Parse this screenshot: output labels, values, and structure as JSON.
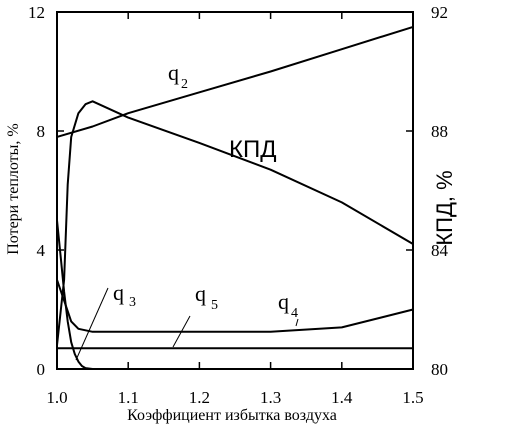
{
  "chart_data": {
    "type": "line",
    "title": "",
    "xlabel": "Коэффициент избытка воздуха",
    "ylabel": "Потери теплоты, %",
    "y2label": "КПД, %",
    "xlim": [
      1.0,
      1.5
    ],
    "ylim": [
      0,
      12
    ],
    "y2lim": [
      80,
      92
    ],
    "x_ticks": [
      "1.0",
      "1.1",
      "1.2",
      "1.3",
      "1.4",
      "1.5"
    ],
    "y_ticks": [
      "0",
      "4",
      "8",
      "12"
    ],
    "y2_ticks": [
      "80",
      "84",
      "88",
      "92"
    ],
    "grid": false,
    "series": [
      {
        "name": "q2",
        "axis": "left",
        "x": [
          1.0,
          1.05,
          1.1,
          1.2,
          1.3,
          1.4,
          1.5
        ],
        "y": [
          7.8,
          8.15,
          8.6,
          9.3,
          10.0,
          10.75,
          11.5
        ]
      },
      {
        "name": "КПД",
        "axis": "right",
        "x": [
          1.0,
          1.01,
          1.015,
          1.02,
          1.03,
          1.04,
          1.05,
          1.1,
          1.2,
          1.3,
          1.4,
          1.5
        ],
        "y": [
          80.8,
          83.0,
          86.2,
          87.8,
          88.6,
          88.9,
          89.0,
          88.45,
          87.6,
          86.7,
          85.6,
          84.2
        ]
      },
      {
        "name": "q3",
        "axis": "left",
        "x": [
          1.0,
          1.005,
          1.01,
          1.015,
          1.02,
          1.025,
          1.03,
          1.035,
          1.04,
          1.05
        ],
        "y": [
          5.0,
          3.8,
          2.6,
          1.6,
          0.9,
          0.5,
          0.25,
          0.1,
          0.03,
          0.0
        ]
      },
      {
        "name": "q5",
        "axis": "left",
        "x": [
          1.0,
          1.5
        ],
        "y": [
          0.7,
          0.7
        ]
      },
      {
        "name": "q4",
        "axis": "left",
        "x": [
          1.0,
          1.01,
          1.02,
          1.03,
          1.05,
          1.1,
          1.2,
          1.3,
          1.4,
          1.5
        ],
        "y": [
          3.0,
          2.3,
          1.6,
          1.35,
          1.25,
          1.25,
          1.25,
          1.25,
          1.4,
          2.0
        ]
      }
    ],
    "annotations": [
      {
        "text": "q",
        "sub": "2"
      },
      {
        "text": "КПД"
      },
      {
        "text": "q",
        "sub": "3"
      },
      {
        "text": "q",
        "sub": "5"
      },
      {
        "text": "q",
        "sub": "4"
      }
    ]
  }
}
